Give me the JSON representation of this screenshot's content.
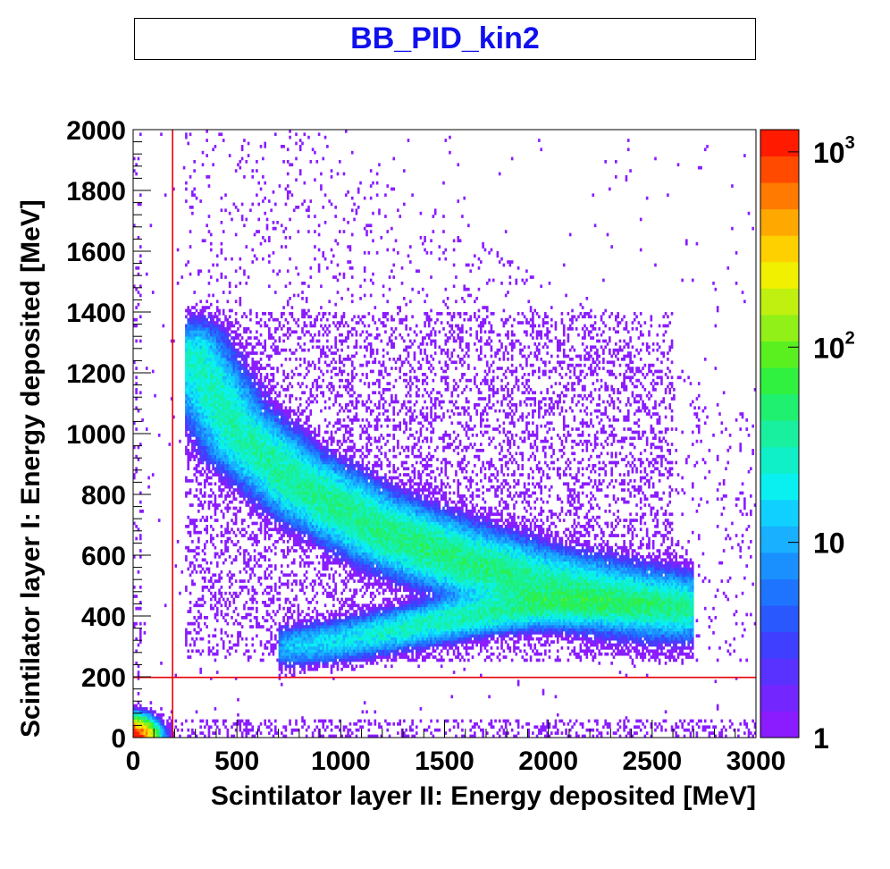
{
  "chart_data": {
    "type": "heatmap",
    "title": "BB_PID_kin2",
    "xlabel": "Scintilator layer II: Energy deposited [MeV]",
    "ylabel": "Scintilator layer I: Energy deposited [MeV]",
    "xlim": [
      0,
      3000
    ],
    "ylim": [
      0,
      2000
    ],
    "x_ticks": [
      "0",
      "500",
      "1000",
      "1500",
      "2000",
      "2500",
      "3000"
    ],
    "y_ticks": [
      "0",
      "200",
      "400",
      "600",
      "800",
      "1000",
      "1200",
      "1400",
      "1600",
      "1800",
      "2000"
    ],
    "z_scale": "log",
    "zlim": [
      1,
      1300
    ],
    "colorbar_labels": [
      {
        "value": 1,
        "base": "1",
        "exp": ""
      },
      {
        "value": 10,
        "base": "10",
        "exp": ""
      },
      {
        "value": 100,
        "base": "10",
        "exp": "2"
      },
      {
        "value": 1000,
        "base": "10",
        "exp": "3"
      }
    ],
    "cut_lines": [
      {
        "orientation": "vertical",
        "x": 190,
        "color": "#e8000b"
      },
      {
        "orientation": "horizontal",
        "y": 198,
        "color": "#e8000b"
      }
    ],
    "bins": {
      "nx": 300,
      "ny": 200
    },
    "bands": [
      {
        "name": "",
        "points": [
          [
            280,
            1250
          ],
          [
            500,
            1000
          ],
          [
            800,
            830
          ],
          [
            1200,
            680
          ],
          [
            1600,
            580
          ],
          [
            2000,
            500
          ],
          [
            2400,
            450
          ],
          [
            2650,
            430
          ]
        ]
      },
      {
        "name": "",
        "points": [
          [
            750,
            300
          ],
          [
            1000,
            320
          ],
          [
            1300,
            360
          ],
          [
            1600,
            400
          ],
          [
            2000,
            440
          ],
          [
            2400,
            440
          ],
          [
            2650,
            430
          ]
        ]
      }
    ],
    "hotspot": {
      "x": [
        0,
        120
      ],
      "y": [
        0,
        60
      ],
      "max_count": 1300
    },
    "grid": false,
    "legend": "colorbar-right"
  }
}
